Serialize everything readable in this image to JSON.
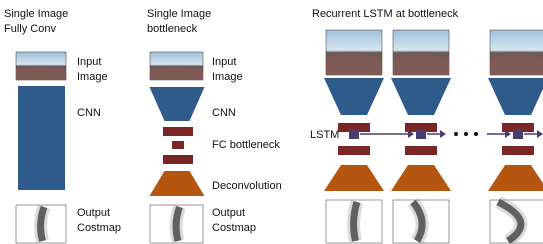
{
  "panels": [
    {
      "title": [
        "Single Image",
        "Fully Conv"
      ],
      "input": [
        "Input",
        "Image"
      ],
      "cnn": "CNN",
      "output": [
        "Output",
        "Costmap"
      ]
    },
    {
      "title": [
        "Single Image",
        "bottleneck"
      ],
      "input": [
        "Input",
        "Image"
      ],
      "cnn": "CNN",
      "fc": "FC bottleneck",
      "deconv": "Deconvolution",
      "output": [
        "Output",
        "Costmap"
      ]
    },
    {
      "title": [
        "Recurrent LSTM at bottleneck"
      ],
      "lstm": "LSTM"
    }
  ]
}
